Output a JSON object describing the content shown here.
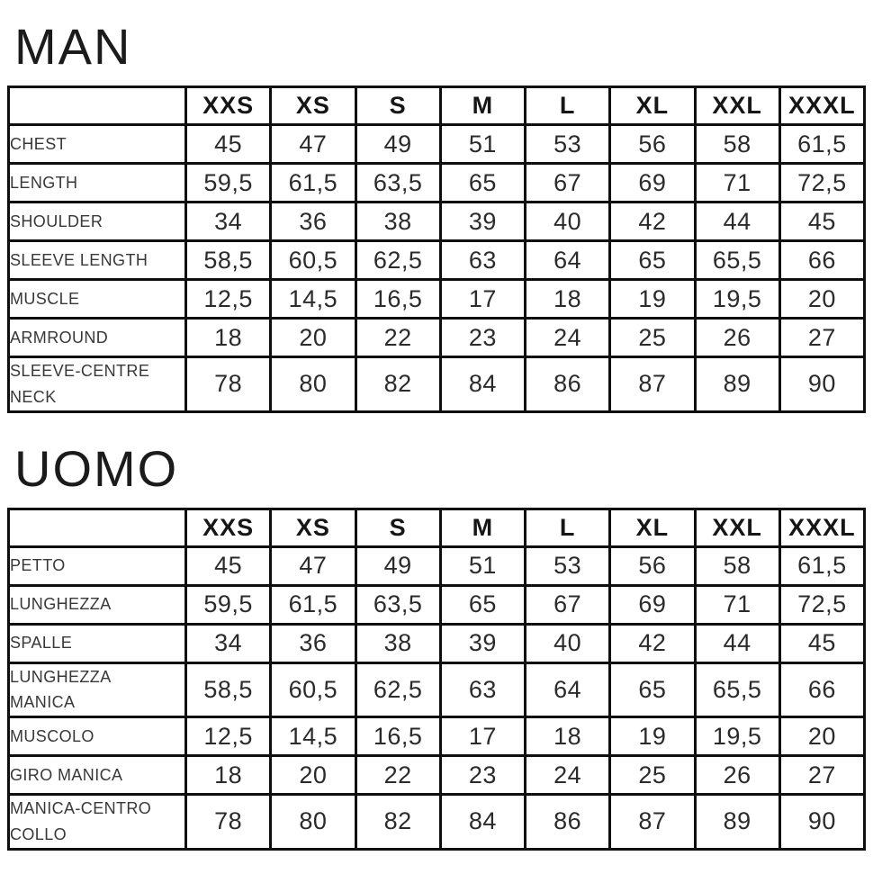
{
  "colors": {
    "background": "#ffffff",
    "border": "#0f0f0f",
    "title_text": "#1b1b1b",
    "header_text": "#161616",
    "label_text": "#383838",
    "value_text": "#2b2b2b"
  },
  "chart_data": [
    {
      "type": "table",
      "title": "MAN",
      "columns": [
        "",
        "XXS",
        "XS",
        "S",
        "M",
        "L",
        "XL",
        "XXL",
        "XXXL"
      ],
      "rows": [
        [
          "CHEST",
          "45",
          "47",
          "49",
          "51",
          "53",
          "56",
          "58",
          "61,5"
        ],
        [
          "LENGTH",
          "59,5",
          "61,5",
          "63,5",
          "65",
          "67",
          "69",
          "71",
          "72,5"
        ],
        [
          "SHOULDER",
          "34",
          "36",
          "38",
          "39",
          "40",
          "42",
          "44",
          "45"
        ],
        [
          "SLEEVE LENGTH",
          "58,5",
          "60,5",
          "62,5",
          "63",
          "64",
          "65",
          "65,5",
          "66"
        ],
        [
          "MUSCLE",
          "12,5",
          "14,5",
          "16,5",
          "17",
          "18",
          "19",
          "19,5",
          "20"
        ],
        [
          "ARMROUND",
          "18",
          "20",
          "22",
          "23",
          "24",
          "25",
          "26",
          "27"
        ],
        [
          "SLEEVE-CENTRE NECK",
          "78",
          "80",
          "82",
          "84",
          "86",
          "87",
          "89",
          "90"
        ]
      ]
    },
    {
      "type": "table",
      "title": "UOMO",
      "columns": [
        "",
        "XXS",
        "XS",
        "S",
        "M",
        "L",
        "XL",
        "XXL",
        "XXXL"
      ],
      "rows": [
        [
          "PETTO",
          "45",
          "47",
          "49",
          "51",
          "53",
          "56",
          "58",
          "61,5"
        ],
        [
          "LUNGHEZZA",
          "59,5",
          "61,5",
          "63,5",
          "65",
          "67",
          "69",
          "71",
          "72,5"
        ],
        [
          "SPALLE",
          "34",
          "36",
          "38",
          "39",
          "40",
          "42",
          "44",
          "45"
        ],
        [
          "LUNGHEZZA MANICA",
          "58,5",
          "60,5",
          "62,5",
          "63",
          "64",
          "65",
          "65,5",
          "66"
        ],
        [
          "MUSCOLO",
          "12,5",
          "14,5",
          "16,5",
          "17",
          "18",
          "19",
          "19,5",
          "20"
        ],
        [
          "GIRO MANICA",
          "18",
          "20",
          "22",
          "23",
          "24",
          "25",
          "26",
          "27"
        ],
        [
          "MANICA-CENTRO COLLO",
          "78",
          "80",
          "82",
          "84",
          "86",
          "87",
          "89",
          "90"
        ]
      ]
    }
  ]
}
